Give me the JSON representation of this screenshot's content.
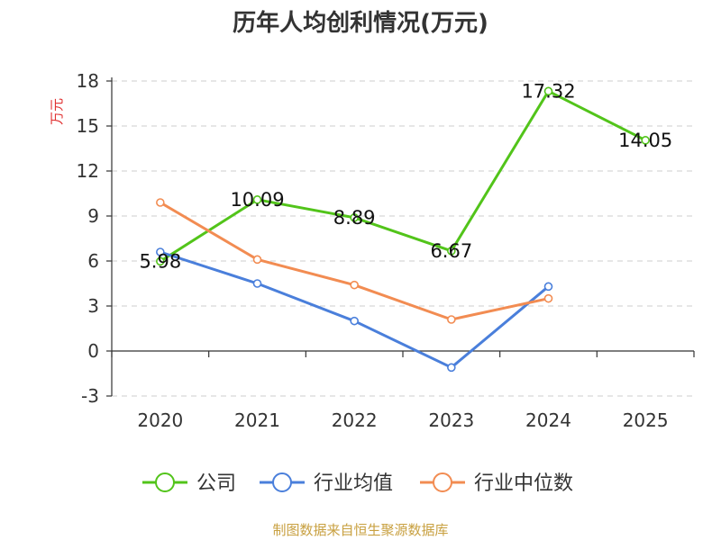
{
  "chart_data": {
    "type": "line",
    "title": "历年人均创利情况(万元)",
    "ylabel": "万元",
    "categories": [
      "2020",
      "2021",
      "2022",
      "2023",
      "2024",
      "2025"
    ],
    "ylim": [
      -3,
      18
    ],
    "yticks": [
      18,
      15,
      12,
      9,
      6,
      3,
      0,
      -3
    ],
    "grid": true,
    "legend_position": "bottom",
    "series": [
      {
        "name": "公司",
        "color": "#52c41a",
        "values": [
          5.98,
          10.09,
          8.89,
          6.67,
          17.32,
          14.05
        ],
        "show_labels": true
      },
      {
        "name": "行业均值",
        "color": "#4a7fdb",
        "values": [
          6.6,
          4.5,
          2.0,
          -1.1,
          4.3,
          null
        ],
        "show_labels": false
      },
      {
        "name": "行业中位数",
        "color": "#f28c52",
        "values": [
          9.9,
          6.1,
          4.4,
          2.1,
          3.5,
          null
        ],
        "show_labels": false
      }
    ]
  },
  "footer": {
    "text": "制图数据来自恒生聚源数据库",
    "color": "#c8a040"
  },
  "ylabel_color": "#e03030"
}
